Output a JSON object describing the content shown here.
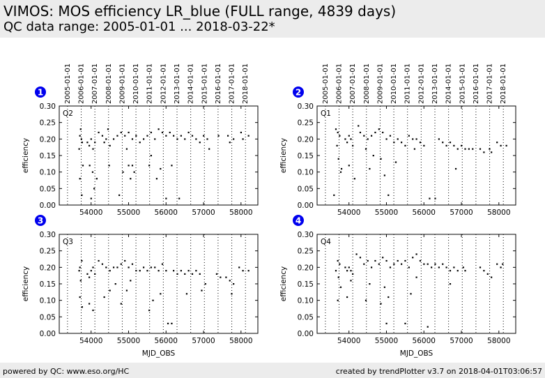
{
  "header": {
    "title": "VIMOS: MOS efficiency LR_blue (FULL range, 4839 days)",
    "subtitle": "QC data range: 2005-01-01 ... 2018-03-22*"
  },
  "footer": {
    "left": "powered by QC: www.eso.org/HC",
    "right": "created by trendPlotter v3.7 on 2018-04-01T03:06:57"
  },
  "colors": {
    "marker": "#000000",
    "badge": "#0000ee",
    "band": "#ececec"
  },
  "chart_data": {
    "type": "scatter",
    "xlabel": "MJD_OBS",
    "ylabel": "efficiency",
    "xlim": [
      53150,
      58450
    ],
    "ylim": [
      0.0,
      0.3
    ],
    "x_ticks": [
      54000,
      55000,
      56000,
      57000,
      58000
    ],
    "y_ticks": [
      "0.00",
      "0.05",
      "0.10",
      "0.15",
      "0.20",
      "0.25",
      "0.30"
    ],
    "year_labels": [
      "2005-01-01",
      "2006-01-01",
      "2007-01-01",
      "2008-01-01",
      "2009-01-01",
      "2010-01-01",
      "2011-01-01",
      "2012-01-01",
      "2013-01-01",
      "2014-01-01",
      "2015-01-01",
      "2016-01-01",
      "2017-01-01",
      "2018-01-01"
    ],
    "year_mjd": [
      53371,
      53736,
      54101,
      54466,
      54832,
      55197,
      55562,
      55927,
      56293,
      56658,
      57023,
      57388,
      57754,
      58119
    ],
    "panels": [
      {
        "badge": "1",
        "label": "Q2",
        "points": [
          [
            53700,
            0.21
          ],
          [
            53740,
            0.2
          ],
          [
            53760,
            0.19
          ],
          [
            53680,
            0.17
          ],
          [
            53720,
            0.23
          ],
          [
            53700,
            0.08
          ],
          [
            53780,
            0.12
          ],
          [
            53750,
            0.03
          ],
          [
            53900,
            0.19
          ],
          [
            53950,
            0.18
          ],
          [
            54000,
            0.2
          ],
          [
            54050,
            0.17
          ],
          [
            54100,
            0.19
          ],
          [
            53960,
            0.12
          ],
          [
            54040,
            0.1
          ],
          [
            54080,
            0.05
          ],
          [
            54000,
            0.02
          ],
          [
            54150,
            0.08
          ],
          [
            54200,
            0.22
          ],
          [
            54300,
            0.21
          ],
          [
            54400,
            0.2
          ],
          [
            54450,
            0.23
          ],
          [
            54350,
            0.19
          ],
          [
            54500,
            0.18
          ],
          [
            54480,
            0.12
          ],
          [
            54600,
            0.2
          ],
          [
            54700,
            0.21
          ],
          [
            54800,
            0.22
          ],
          [
            54900,
            0.21
          ],
          [
            55000,
            0.22
          ],
          [
            55100,
            0.2
          ],
          [
            55200,
            0.21
          ],
          [
            54750,
            0.03
          ],
          [
            54850,
            0.1
          ],
          [
            54950,
            0.17
          ],
          [
            55000,
            0.12
          ],
          [
            55050,
            0.08
          ],
          [
            55100,
            0.12
          ],
          [
            55150,
            0.1
          ],
          [
            55300,
            0.19
          ],
          [
            55400,
            0.2
          ],
          [
            55500,
            0.21
          ],
          [
            55600,
            0.22
          ],
          [
            55700,
            0.2
          ],
          [
            55800,
            0.23
          ],
          [
            55900,
            0.22
          ],
          [
            56000,
            0.21
          ],
          [
            55550,
            0.12
          ],
          [
            55600,
            0.15
          ],
          [
            55750,
            0.08
          ],
          [
            55850,
            0.11
          ],
          [
            56000,
            0.02
          ],
          [
            56100,
            0.22
          ],
          [
            56200,
            0.21
          ],
          [
            56300,
            0.2
          ],
          [
            56400,
            0.21
          ],
          [
            56500,
            0.2
          ],
          [
            56600,
            0.22
          ],
          [
            56700,
            0.21
          ],
          [
            56800,
            0.2
          ],
          [
            56900,
            0.19
          ],
          [
            56350,
            0.02
          ],
          [
            56150,
            0.12
          ],
          [
            57000,
            0.21
          ],
          [
            57100,
            0.2
          ],
          [
            57150,
            0.17
          ],
          [
            57400,
            0.21
          ],
          [
            57650,
            0.21
          ],
          [
            57700,
            0.19
          ],
          [
            57800,
            0.2
          ],
          [
            58000,
            0.22
          ],
          [
            58050,
            0.2
          ],
          [
            58200,
            0.21
          ]
        ]
      },
      {
        "badge": "2",
        "label": "Q1",
        "points": [
          [
            53650,
            0.23
          ],
          [
            53700,
            0.22
          ],
          [
            53750,
            0.21
          ],
          [
            53680,
            0.18
          ],
          [
            53600,
            0.03
          ],
          [
            53720,
            0.14
          ],
          [
            53780,
            0.1
          ],
          [
            53800,
            0.11
          ],
          [
            53900,
            0.2
          ],
          [
            53950,
            0.19
          ],
          [
            54000,
            0.21
          ],
          [
            54050,
            0.2
          ],
          [
            54100,
            0.18
          ],
          [
            54000,
            0.12
          ],
          [
            54150,
            0.08
          ],
          [
            54250,
            0.24
          ],
          [
            54300,
            0.22
          ],
          [
            54400,
            0.21
          ],
          [
            54500,
            0.2
          ],
          [
            54600,
            0.21
          ],
          [
            54450,
            0.17
          ],
          [
            54550,
            0.11
          ],
          [
            54650,
            0.15
          ],
          [
            54700,
            0.22
          ],
          [
            54800,
            0.23
          ],
          [
            54900,
            0.22
          ],
          [
            55000,
            0.2
          ],
          [
            55100,
            0.21
          ],
          [
            55200,
            0.19
          ],
          [
            54850,
            0.14
          ],
          [
            54950,
            0.09
          ],
          [
            55050,
            0.03
          ],
          [
            55250,
            0.13
          ],
          [
            55300,
            0.2
          ],
          [
            55400,
            0.19
          ],
          [
            55500,
            0.18
          ],
          [
            55600,
            0.21
          ],
          [
            55700,
            0.2
          ],
          [
            55800,
            0.2
          ],
          [
            55900,
            0.19
          ],
          [
            56000,
            0.18
          ],
          [
            55750,
            0.17
          ],
          [
            56150,
            0.02
          ],
          [
            56300,
            0.02
          ],
          [
            56400,
            0.2
          ],
          [
            56500,
            0.19
          ],
          [
            56600,
            0.18
          ],
          [
            56700,
            0.19
          ],
          [
            56800,
            0.18
          ],
          [
            56900,
            0.17
          ],
          [
            57000,
            0.18
          ],
          [
            56850,
            0.11
          ],
          [
            57100,
            0.17
          ],
          [
            57200,
            0.17
          ],
          [
            57300,
            0.17
          ],
          [
            57500,
            0.17
          ],
          [
            57600,
            0.16
          ],
          [
            57750,
            0.17
          ],
          [
            57800,
            0.16
          ],
          [
            57950,
            0.19
          ],
          [
            58050,
            0.18
          ],
          [
            58200,
            0.18
          ]
        ]
      },
      {
        "badge": "3",
        "label": "Q3",
        "points": [
          [
            53700,
            0.2
          ],
          [
            53750,
            0.22
          ],
          [
            53680,
            0.19
          ],
          [
            53720,
            0.16
          ],
          [
            53700,
            0.11
          ],
          [
            53760,
            0.08
          ],
          [
            53900,
            0.18
          ],
          [
            53950,
            0.17
          ],
          [
            54000,
            0.19
          ],
          [
            54050,
            0.2
          ],
          [
            54100,
            0.18
          ],
          [
            53950,
            0.09
          ],
          [
            54050,
            0.07
          ],
          [
            54200,
            0.22
          ],
          [
            54300,
            0.21
          ],
          [
            54400,
            0.2
          ],
          [
            54500,
            0.19
          ],
          [
            54600,
            0.2
          ],
          [
            54350,
            0.11
          ],
          [
            54500,
            0.13
          ],
          [
            54650,
            0.15
          ],
          [
            54700,
            0.2
          ],
          [
            54800,
            0.21
          ],
          [
            54900,
            0.22
          ],
          [
            55000,
            0.2
          ],
          [
            55100,
            0.21
          ],
          [
            55200,
            0.19
          ],
          [
            54800,
            0.09
          ],
          [
            54950,
            0.13
          ],
          [
            55050,
            0.16
          ],
          [
            55300,
            0.19
          ],
          [
            55400,
            0.2
          ],
          [
            55500,
            0.19
          ],
          [
            55600,
            0.2
          ],
          [
            55700,
            0.2
          ],
          [
            55800,
            0.19
          ],
          [
            55900,
            0.21
          ],
          [
            56000,
            0.19
          ],
          [
            55550,
            0.07
          ],
          [
            55650,
            0.1
          ],
          [
            55850,
            0.12
          ],
          [
            56050,
            0.03
          ],
          [
            56150,
            0.03
          ],
          [
            56200,
            0.19
          ],
          [
            56300,
            0.18
          ],
          [
            56400,
            0.19
          ],
          [
            56500,
            0.18
          ],
          [
            56600,
            0.19
          ],
          [
            56700,
            0.18
          ],
          [
            56800,
            0.19
          ],
          [
            56900,
            0.18
          ],
          [
            56550,
            0.12
          ],
          [
            56950,
            0.13
          ],
          [
            57050,
            0.15
          ],
          [
            57350,
            0.18
          ],
          [
            57450,
            0.17
          ],
          [
            57600,
            0.17
          ],
          [
            57700,
            0.16
          ],
          [
            57750,
            0.12
          ],
          [
            57800,
            0.15
          ],
          [
            57950,
            0.2
          ],
          [
            58050,
            0.19
          ],
          [
            58200,
            0.19
          ]
        ]
      },
      {
        "badge": "4",
        "label": "Q4",
        "points": [
          [
            53700,
            0.22
          ],
          [
            53750,
            0.21
          ],
          [
            53650,
            0.19
          ],
          [
            53720,
            0.17
          ],
          [
            53700,
            0.1
          ],
          [
            53780,
            0.14
          ],
          [
            53900,
            0.2
          ],
          [
            53950,
            0.19
          ],
          [
            54000,
            0.2
          ],
          [
            54050,
            0.19
          ],
          [
            54100,
            0.18
          ],
          [
            53950,
            0.11
          ],
          [
            54050,
            0.16
          ],
          [
            54200,
            0.24
          ],
          [
            54300,
            0.23
          ],
          [
            54400,
            0.21
          ],
          [
            54500,
            0.22
          ],
          [
            54600,
            0.2
          ],
          [
            54450,
            0.1
          ],
          [
            54550,
            0.15
          ],
          [
            54700,
            0.22
          ],
          [
            54800,
            0.21
          ],
          [
            54900,
            0.23
          ],
          [
            55000,
            0.22
          ],
          [
            55100,
            0.2
          ],
          [
            55200,
            0.21
          ],
          [
            54850,
            0.09
          ],
          [
            54950,
            0.14
          ],
          [
            55050,
            0.11
          ],
          [
            55000,
            0.03
          ],
          [
            55300,
            0.22
          ],
          [
            55400,
            0.21
          ],
          [
            55500,
            0.22
          ],
          [
            55600,
            0.2
          ],
          [
            55700,
            0.23
          ],
          [
            55800,
            0.24
          ],
          [
            55900,
            0.22
          ],
          [
            56000,
            0.21
          ],
          [
            55650,
            0.12
          ],
          [
            55800,
            0.17
          ],
          [
            55500,
            0.03
          ],
          [
            56100,
            0.21
          ],
          [
            56200,
            0.2
          ],
          [
            56300,
            0.21
          ],
          [
            56400,
            0.2
          ],
          [
            56500,
            0.21
          ],
          [
            56600,
            0.2
          ],
          [
            56700,
            0.19
          ],
          [
            56800,
            0.2
          ],
          [
            56900,
            0.19
          ],
          [
            56100,
            0.02
          ],
          [
            56700,
            0.15
          ],
          [
            57050,
            0.2
          ],
          [
            57100,
            0.19
          ],
          [
            57500,
            0.2
          ],
          [
            57600,
            0.19
          ],
          [
            57700,
            0.18
          ],
          [
            57800,
            0.17
          ],
          [
            57950,
            0.21
          ],
          [
            58050,
            0.2
          ],
          [
            58100,
            0.21
          ]
        ]
      }
    ]
  }
}
